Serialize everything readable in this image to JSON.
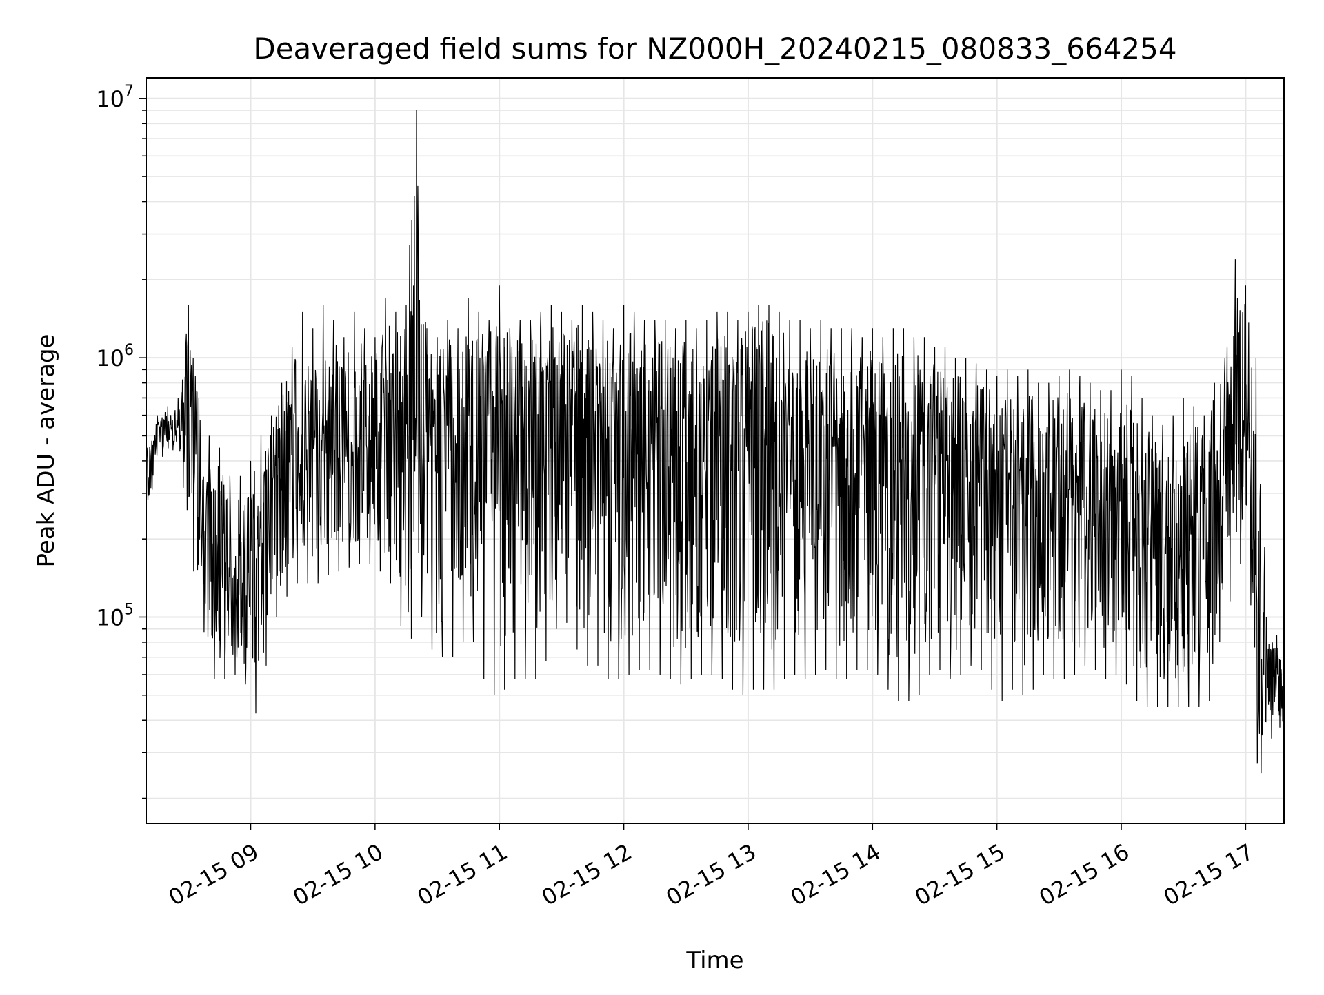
{
  "chart_data": {
    "type": "line",
    "title": "Deaveraged field sums for NZ000H_20240215_080833_664254",
    "xlabel": "Time",
    "ylabel": "Peak ADU - average",
    "yscale": "log",
    "ylim": [
      16000,
      12000000
    ],
    "xlim": [
      "02-15 08:09:36",
      "02-15 17:18:30"
    ],
    "x_ticks": [
      "02-15 09",
      "02-15 10",
      "02-15 11",
      "02-15 12",
      "02-15 13",
      "02-15 14",
      "02-15 15",
      "02-15 16",
      "02-15 17"
    ],
    "y_ticks": [
      {
        "value": 100000,
        "base": "10",
        "exp": "5"
      },
      {
        "value": 1000000,
        "base": "10",
        "exp": "6"
      },
      {
        "value": 10000000,
        "base": "10",
        "exp": "7"
      }
    ],
    "grid": true,
    "line_color": "#000000",
    "grid_color": "#e6e6e6",
    "series": [
      {
        "x": [
          "02-15 08:10",
          "02-15 08:15",
          "02-15 08:20",
          "02-15 08:25",
          "02-15 08:30",
          "02-15 08:35",
          "02-15 08:40",
          "02-15 08:45",
          "02-15 08:50",
          "02-15 08:55",
          "02-15 09:00",
          "02-15 09:05",
          "02-15 09:10",
          "02-15 09:15",
          "02-15 09:20",
          "02-15 09:25",
          "02-15 09:30",
          "02-15 09:35",
          "02-15 09:40",
          "02-15 09:45",
          "02-15 09:50",
          "02-15 09:55",
          "02-15 10:00",
          "02-15 10:05",
          "02-15 10:10",
          "02-15 10:15",
          "02-15 10:20",
          "02-15 10:25",
          "02-15 10:30",
          "02-15 10:35",
          "02-15 10:40",
          "02-15 10:45",
          "02-15 10:50",
          "02-15 10:55",
          "02-15 11:00",
          "02-15 11:05",
          "02-15 11:10",
          "02-15 11:15",
          "02-15 11:20",
          "02-15 11:25",
          "02-15 11:30",
          "02-15 11:35",
          "02-15 11:40",
          "02-15 11:45",
          "02-15 11:50",
          "02-15 11:55",
          "02-15 12:00",
          "02-15 12:05",
          "02-15 12:10",
          "02-15 12:15",
          "02-15 12:20",
          "02-15 12:25",
          "02-15 12:30",
          "02-15 12:35",
          "02-15 12:40",
          "02-15 12:45",
          "02-15 12:50",
          "02-15 12:55",
          "02-15 13:00",
          "02-15 13:05",
          "02-15 13:10",
          "02-15 13:15",
          "02-15 13:20",
          "02-15 13:25",
          "02-15 13:30",
          "02-15 13:35",
          "02-15 13:40",
          "02-15 13:45",
          "02-15 13:50",
          "02-15 13:55",
          "02-15 14:00",
          "02-15 14:05",
          "02-15 14:10",
          "02-15 14:15",
          "02-15 14:20",
          "02-15 14:25",
          "02-15 14:30",
          "02-15 14:35",
          "02-15 14:40",
          "02-15 14:45",
          "02-15 14:50",
          "02-15 14:55",
          "02-15 15:00",
          "02-15 15:05",
          "02-15 15:10",
          "02-15 15:15",
          "02-15 15:20",
          "02-15 15:25",
          "02-15 15:30",
          "02-15 15:35",
          "02-15 15:40",
          "02-15 15:45",
          "02-15 15:50",
          "02-15 15:55",
          "02-15 16:00",
          "02-15 16:05",
          "02-15 16:10",
          "02-15 16:15",
          "02-15 16:20",
          "02-15 16:25",
          "02-15 16:30",
          "02-15 16:35",
          "02-15 16:40",
          "02-15 16:45",
          "02-15 16:50",
          "02-15 16:55",
          "02-15 17:00",
          "02-15 17:05",
          "02-15 17:10",
          "02-15 17:15",
          "02-15 17:18"
        ],
        "low": [
          220000,
          400000,
          430000,
          450000,
          180000,
          120000,
          55000,
          60000,
          55000,
          65000,
          45000,
          40000,
          90000,
          110000,
          130000,
          140000,
          130000,
          140000,
          150000,
          150000,
          160000,
          160000,
          160000,
          140000,
          130000,
          55000,
          110000,
          90000,
          60000,
          80000,
          60000,
          100000,
          60000,
          55000,
          45000,
          60000,
          55000,
          60000,
          55000,
          80000,
          100000,
          90000,
          60000,
          70000,
          60000,
          55000,
          60000,
          60000,
          65000,
          60000,
          60000,
          55000,
          55000,
          60000,
          60000,
          60000,
          55000,
          50000,
          50000,
          55000,
          50000,
          55000,
          60000,
          60000,
          55000,
          65000,
          60000,
          55000,
          60000,
          65000,
          60000,
          60000,
          45000,
          50000,
          45000,
          55000,
          65000,
          60000,
          55000,
          65000,
          65000,
          60000,
          45000,
          50000,
          55000,
          45000,
          60000,
          60000,
          55000,
          60000,
          60000,
          70000,
          55000,
          60000,
          60000,
          50000,
          45000,
          45000,
          45000,
          45000,
          45000,
          45000,
          45000,
          50000,
          110000,
          120000,
          200000,
          22000,
          28000,
          40000,
          35000
        ],
        "high": [
          450000,
          600000,
          650000,
          700000,
          1600000,
          700000,
          500000,
          450000,
          350000,
          350000,
          400000,
          500000,
          600000,
          800000,
          1100000,
          1500000,
          1300000,
          1600000,
          1400000,
          1200000,
          1500000,
          1300000,
          1200000,
          1700000,
          1500000,
          1600000,
          9000000,
          1300000,
          1200000,
          1400000,
          1300000,
          1700000,
          1500000,
          1400000,
          1900000,
          1300000,
          1400000,
          1400000,
          1500000,
          1600000,
          1500000,
          1400000,
          1600000,
          1500000,
          1400000,
          1300000,
          1600000,
          1500000,
          1400000,
          1400000,
          1400000,
          1300000,
          1400000,
          1300000,
          1400000,
          1500000,
          1500000,
          1400000,
          1500000,
          1600000,
          1600000,
          1500000,
          1400000,
          1400000,
          1300000,
          1400000,
          1300000,
          1300000,
          1300000,
          1200000,
          1300000,
          1200000,
          1300000,
          1300000,
          1200000,
          1200000,
          1100000,
          1100000,
          1000000,
          1000000,
          950000,
          900000,
          850000,
          900000,
          850000,
          900000,
          800000,
          800000,
          850000,
          900000,
          850000,
          800000,
          750000,
          750000,
          900000,
          850000,
          700000,
          600000,
          550000,
          600000,
          700000,
          650000,
          600000,
          800000,
          1000000,
          2400000,
          1900000,
          1000000,
          100000,
          85000,
          60000
        ],
        "mid": [
          350000,
          500000,
          550000,
          600000,
          650000,
          350000,
          200000,
          150000,
          120000,
          110000,
          150000,
          200000,
          300000,
          350000,
          450000,
          500000,
          500000,
          500000,
          550000,
          500000,
          500000,
          450000,
          450000,
          500000,
          550000,
          500000,
          600000,
          500000,
          450000,
          500000,
          500000,
          550000,
          500000,
          550000,
          600000,
          550000,
          550000,
          550000,
          600000,
          650000,
          700000,
          650000,
          700000,
          650000,
          600000,
          550000,
          500000,
          500000,
          450000,
          450000,
          450000,
          400000,
          450000,
          450000,
          500000,
          550000,
          600000,
          600000,
          650000,
          700000,
          650000,
          600000,
          550000,
          550000,
          500000,
          500000,
          500000,
          480000,
          480000,
          460000,
          450000,
          450000,
          430000,
          430000,
          420000,
          420000,
          400000,
          380000,
          380000,
          360000,
          350000,
          350000,
          330000,
          320000,
          320000,
          310000,
          300000,
          300000,
          300000,
          300000,
          290000,
          280000,
          270000,
          270000,
          260000,
          240000,
          210000,
          190000,
          180000,
          170000,
          200000,
          250000,
          300000,
          350000,
          450000,
          700000,
          900000,
          60000,
          55000,
          70000,
          40000
        ]
      }
    ]
  }
}
